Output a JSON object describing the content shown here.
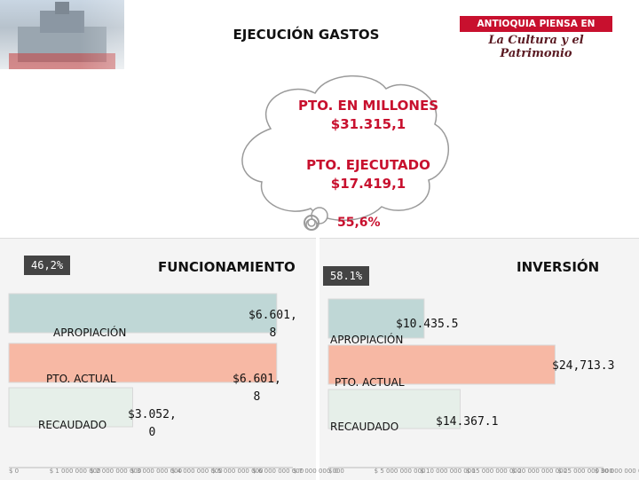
{
  "header": {
    "title": "EJECUCIÓN GASTOS",
    "logo_line1": "ANTIOQUIA PIENSA EN GRANDE",
    "logo_line2": "La Cultura y el Patrimonio"
  },
  "cloud": {
    "budget_label": "PTO. EN MILLONES",
    "budget_value": "$31.315,1",
    "executed_label": "PTO. EJECUTADO",
    "executed_value": "$17.419,1",
    "execution_pct": "55,6%"
  },
  "colors": {
    "accent_red": "#c8102e",
    "bar_appropriation": "#bfd7d6",
    "bar_budget": "#f7b8a4",
    "bar_collected": "#e6efe9"
  },
  "chart_data": [
    {
      "type": "bar",
      "orientation": "horizontal",
      "title": "FUNCIONAMIENTO",
      "execution_pct": "46,2%",
      "categories": [
        "APROPIACIÓN",
        "PTO. ACTUAL",
        "RECAUDADO"
      ],
      "values": [
        6601.8,
        6601.8,
        3052.0
      ],
      "value_labels": [
        "$6.601,\n8",
        "$6.601,\n8",
        "$3.052,\n0"
      ],
      "xlim": [
        0,
        7000000000
      ],
      "value_units": "millions",
      "tick_labels": [
        "$ 0",
        "$ 1 000 000 000",
        "$ 2 000 000 000",
        "$ 3 000 000 000",
        "$ 4 000 000 000",
        "$ 5 000 000 000",
        "$ 6 000 000 000",
        "$ 7 000 000 000"
      ]
    },
    {
      "type": "bar",
      "orientation": "horizontal",
      "title": "INVERSIÓN",
      "execution_pct": "58.1%",
      "categories": [
        "APROPIACIÓN",
        "PTO. ACTUAL",
        "RECAUDADO"
      ],
      "values": [
        10435.5,
        24713.3,
        14367.1
      ],
      "value_labels": [
        "$10.435.5",
        "$24,713.3",
        "$14.367.1"
      ],
      "xlim": [
        0,
        30000000000
      ],
      "value_units": "millions",
      "tick_labels": [
        "$ 0",
        "$ 5 000 000 000",
        "$ 10 000 000 000",
        "$ 15 000 000 000",
        "$ 20 000 000 000",
        "$ 25 000 000 000",
        "$ 30 000 000 000"
      ]
    }
  ]
}
